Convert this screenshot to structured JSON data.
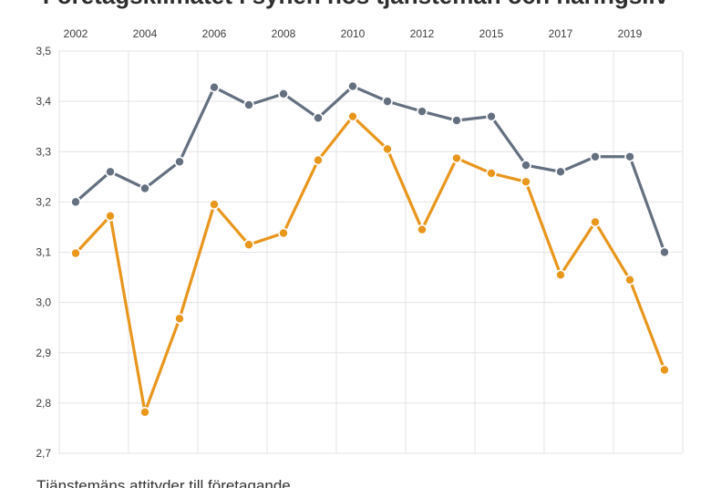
{
  "chart_data": {
    "type": "line",
    "title": "Företagsklimatet i synen hos tjänstemän och näringsliv",
    "caption": "Tjänstemäns attityder till företagande",
    "x_tick_labels": [
      "2002",
      "2004",
      "2006",
      "2008",
      "2010",
      "2012",
      "2015",
      "2017",
      "2019"
    ],
    "y_tick_labels": [
      "2,7",
      "2,8",
      "2,9",
      "3,0",
      "3,1",
      "3,2",
      "3,3",
      "3,4",
      "3,5"
    ],
    "ylim": [
      2.7,
      3.5
    ],
    "grid": true,
    "legend": "none",
    "series": [
      {
        "color": "#647080",
        "values": [
          3.2,
          3.26,
          3.227,
          3.28,
          3.428,
          3.393,
          3.415,
          3.367,
          3.43,
          3.4,
          3.38,
          3.362,
          3.37,
          3.273,
          3.26,
          3.29,
          3.29,
          3.1
        ]
      },
      {
        "color": "#e8961c",
        "values": [
          3.098,
          3.172,
          2.782,
          2.968,
          3.195,
          3.115,
          3.138,
          3.283,
          3.37,
          3.305,
          3.145,
          3.287,
          3.257,
          3.24,
          3.055,
          3.16,
          3.045,
          2.866
        ]
      }
    ]
  }
}
